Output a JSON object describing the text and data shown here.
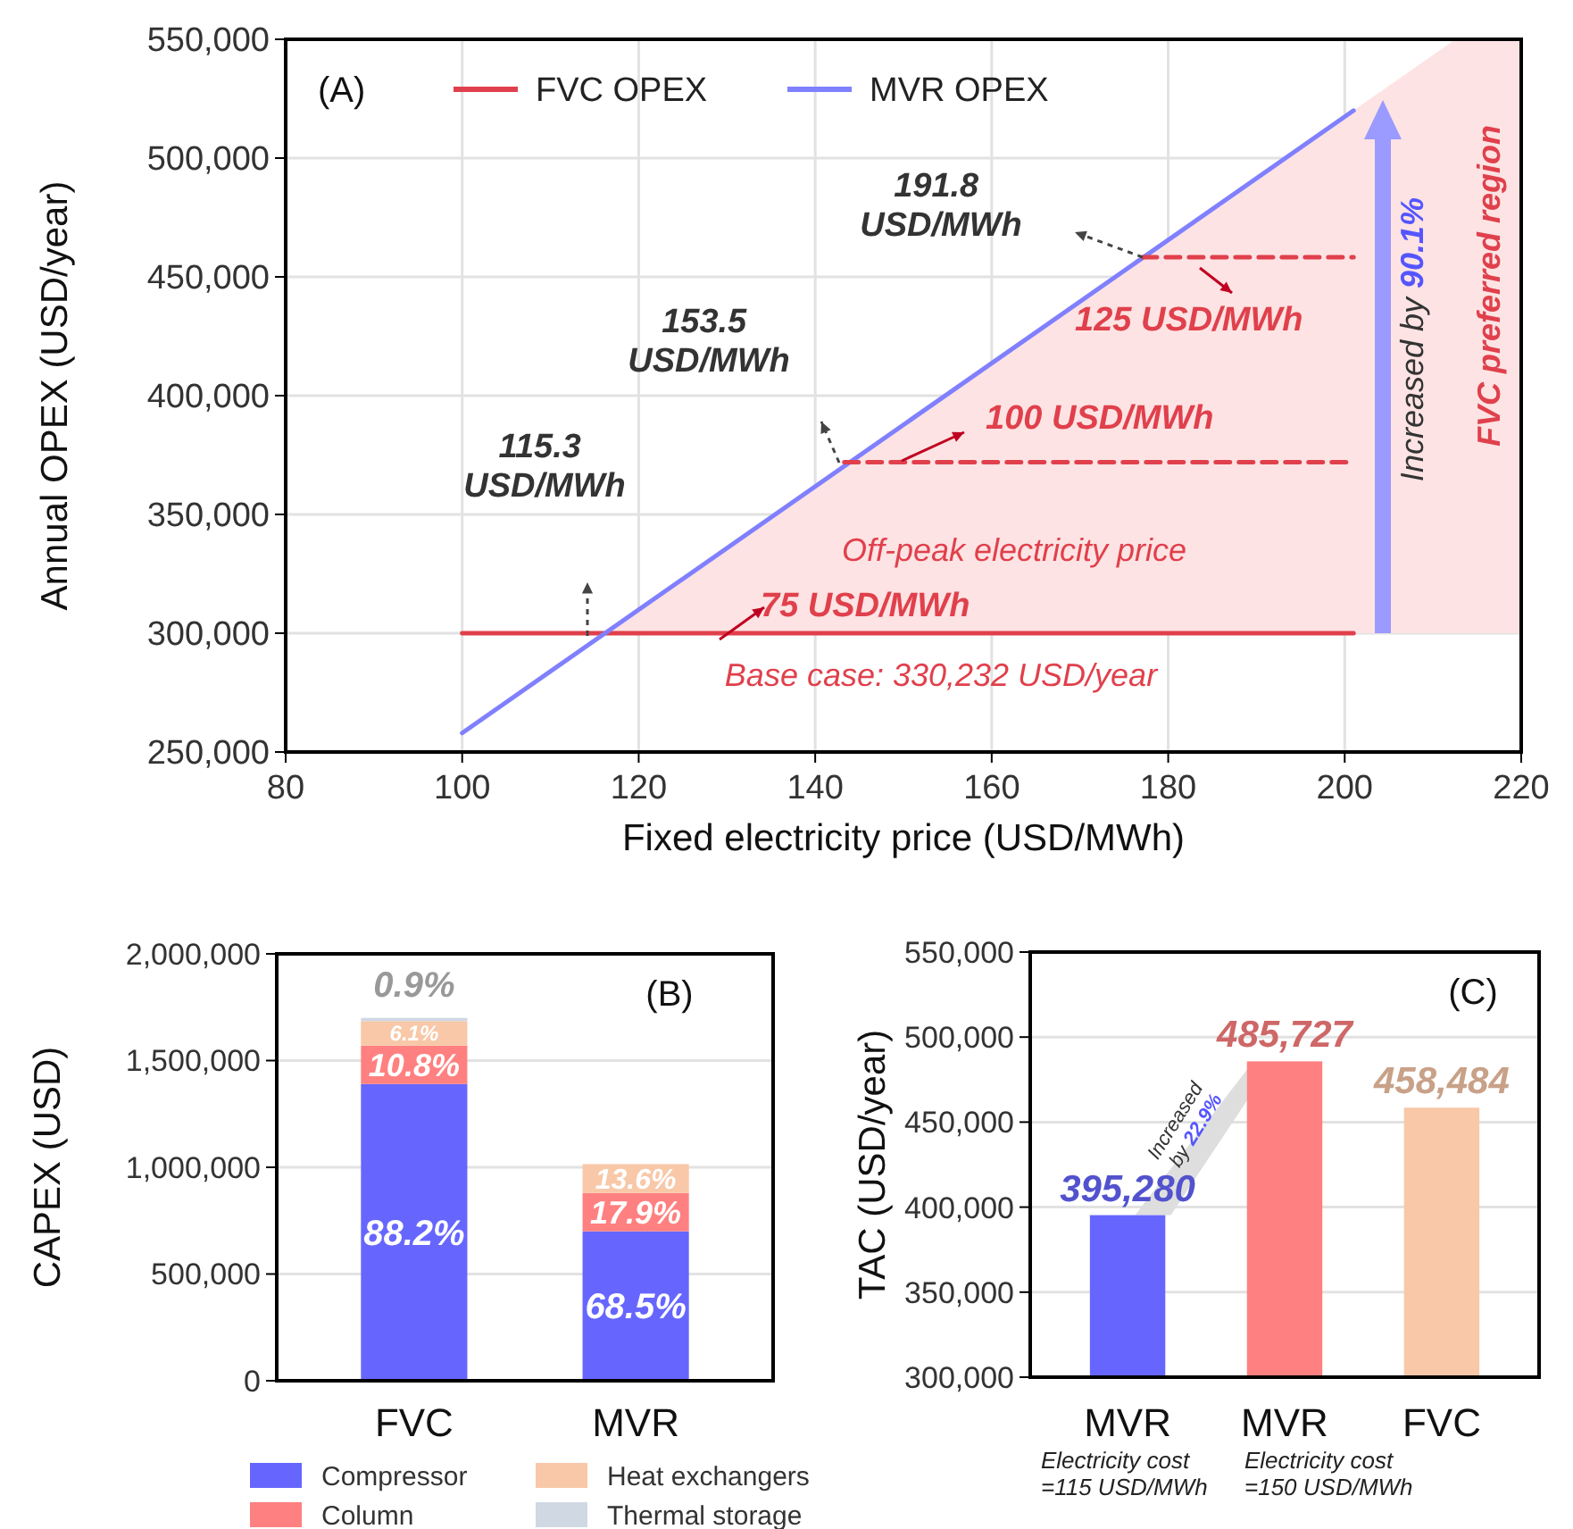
{
  "chart_data": [
    {
      "type": "line",
      "xlabel": "Fixed electricity price (USD/MWh)",
      "ylabel": "Annual OPEX (USD/year)",
      "xlim": [
        80,
        220
      ],
      "xticks": [
        80,
        100,
        120,
        140,
        160,
        180,
        200,
        220
      ],
      "ylim": [
        250000,
        550000
      ],
      "yticks": [
        {
          "value": 250000,
          "label": "250,000"
        },
        {
          "value": 300000,
          "label": "300,000"
        },
        {
          "value": 350000,
          "label": "350,000"
        },
        {
          "value": 400000,
          "label": "400,000"
        },
        {
          "value": 450000,
          "label": "450,000"
        },
        {
          "value": 500000,
          "label": "500,000"
        },
        {
          "value": 550000,
          "label": "550,000"
        }
      ],
      "grid": true,
      "legend": "top",
      "series": [
        {
          "name": "FVC OPEX",
          "color": "#e0404c",
          "x": [
            100,
            201
          ],
          "values": [
            300000,
            300000
          ]
        },
        {
          "name": "MVR OPEX",
          "color": "#8080ff",
          "x": [
            100,
            201
          ],
          "values": [
            258000,
            520000
          ]
        },
        {
          "color": "#e0404c",
          "line_style": "dashed",
          "x": [
            143.3,
            201
          ],
          "values": [
            372000,
            372000
          ]
        },
        {
          "color": "#e0404c",
          "line_style": "dashed",
          "x": [
            177.1,
            201
          ],
          "values": [
            458300,
            458300
          ]
        }
      ],
      "annotations": [
        "(A)",
        "115.3 USD/MWh",
        "153.5 USD/MWh",
        "191.8 USD/MWh",
        "Off-peak electricity price",
        "75 USD/MWh",
        "100 USD/MWh",
        "125 USD/MWh",
        "Base case: 330,232 USD/year",
        "Increased by 90.1%",
        "FVC preferred region"
      ]
    },
    {
      "type": "bar",
      "stacked": true,
      "ylabel": "CAPEX (USD)",
      "categories": [
        "FVC",
        "MVR"
      ],
      "ylim": [
        0,
        2000000
      ],
      "yticks": [
        0,
        {
          "value": 500000,
          "label": "500,000"
        },
        {
          "value": 1000000,
          "label": "1,000,000"
        },
        {
          "value": 1500000,
          "label": "1,500,000"
        },
        {
          "value": 2000000,
          "label": "2,000,000"
        }
      ],
      "grid": "y",
      "legend": "bottom",
      "series": [
        {
          "name": "Compressor",
          "color": "#6666ff",
          "values": [
            1390000,
            700000
          ]
        },
        {
          "name": "Column",
          "color": "#ff8080",
          "values": [
            180000,
            180000
          ]
        },
        {
          "name": "Heat exchangers",
          "color": "#f8c8a8",
          "values": [
            115000,
            135000
          ]
        },
        {
          "name": "Thermal storage",
          "color": "#d0d8e4",
          "values": [
            15000,
            null
          ]
        }
      ],
      "annotations": [
        "(B)",
        "88.2%",
        "10.8%",
        "6.1%",
        "0.9%",
        "68.5%",
        "17.9%",
        "13.6%"
      ]
    },
    {
      "type": "bar",
      "ylabel": "TAC (USD/year)",
      "categories": [
        "MVR",
        "MVR",
        "FVC"
      ],
      "values": [
        395280,
        485727,
        458484
      ],
      "colors": [
        "#6666ff",
        "#ff8080",
        "#f8c8a8"
      ],
      "value_labels": [
        "395,280",
        "485,727",
        "458,484"
      ],
      "ylim": [
        300000,
        550000
      ],
      "yticks": [
        {
          "value": 300000,
          "label": "300,000"
        },
        {
          "value": 350000,
          "label": "350,000"
        },
        {
          "value": 400000,
          "label": "400,000"
        },
        {
          "value": 450000,
          "label": "450,000"
        },
        {
          "value": 500000,
          "label": "500,000"
        },
        {
          "value": 550000,
          "label": "550,000"
        }
      ],
      "grid": "y",
      "annotations": [
        "(C)",
        "Increased by 22.9%",
        "Electricity cost =115 USD/MWh",
        "Electricity cost =150 USD/MWh"
      ]
    }
  ]
}
